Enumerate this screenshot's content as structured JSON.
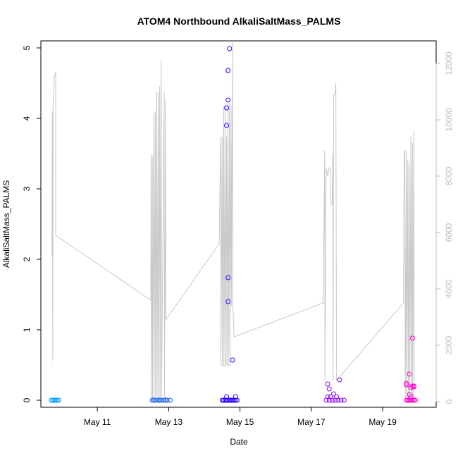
{
  "chart_data": {
    "type": "scatter",
    "title": "ATOM4 Northbound AlkaliSaltMass_PALMS",
    "xlabel": "Date",
    "ylabel": "AlkaliSaltMass_PALMS",
    "ylim": [
      -0.1,
      5.1
    ],
    "y2lim": [
      -200,
      12800
    ],
    "xlim": [
      "2016-05-09T10:00",
      "2016-05-20T12:00"
    ],
    "x_ticks": [
      "May 11",
      "May 13",
      "May 15",
      "May 17",
      "May 19"
    ],
    "y_ticks": [
      "0",
      "1",
      "2",
      "3",
      "4",
      "5"
    ],
    "y2_ticks": [
      "0",
      "2000",
      "4000",
      "6000",
      "8000",
      "10000",
      "12000"
    ],
    "grid": false,
    "series": [
      {
        "color": "#009cff",
        "points": [
          [
            "2016-05-09T17:00",
            0
          ],
          [
            "2016-05-09T18:00",
            0
          ],
          [
            "2016-05-09T19:00",
            0
          ],
          [
            "2016-05-09T20:00",
            0
          ],
          [
            "2016-05-09T21:00",
            0
          ],
          [
            "2016-05-09T22:00",
            0
          ]
        ]
      },
      {
        "color": "#1966ff",
        "points": [
          [
            "2016-05-12T13:00",
            0
          ],
          [
            "2016-05-12T15:00",
            0
          ],
          [
            "2016-05-12T17:00",
            0
          ],
          [
            "2016-05-12T19:00",
            0
          ],
          [
            "2016-05-12T21:00",
            0
          ],
          [
            "2016-05-12T23:00",
            0
          ],
          [
            "2016-05-13T01:00",
            0
          ],
          [
            "2016-05-12T14:00",
            0
          ],
          [
            "2016-05-12T18:00",
            0
          ],
          [
            "2016-05-12T22:00",
            0
          ]
        ]
      },
      {
        "color": "#2400ff",
        "points": [
          [
            "2016-05-14T12:00",
            0
          ],
          [
            "2016-05-14T13:00",
            0
          ],
          [
            "2016-05-14T14:00",
            0
          ],
          [
            "2016-05-14T15:00",
            0
          ],
          [
            "2016-05-14T16:00",
            0
          ],
          [
            "2016-05-14T17:00",
            0
          ],
          [
            "2016-05-14T18:00",
            0
          ],
          [
            "2016-05-14T19:00",
            0
          ],
          [
            "2016-05-14T20:00",
            0
          ],
          [
            "2016-05-14T21:00",
            0
          ],
          [
            "2016-05-14T22:00",
            0
          ],
          [
            "2016-05-14T15:00",
            0.05
          ],
          [
            "2016-05-14T21:00",
            0.05
          ],
          [
            "2016-05-14T19:00",
            0.57
          ],
          [
            "2016-05-14T16:00",
            1.4
          ],
          [
            "2016-05-14T16:00",
            1.74
          ],
          [
            "2016-05-14T15:00",
            3.9
          ],
          [
            "2016-05-14T15:00",
            4.15
          ],
          [
            "2016-05-14T16:00",
            4.26
          ],
          [
            "2016-05-14T16:00",
            4.68
          ],
          [
            "2016-05-14T17:00",
            4.99
          ]
        ]
      },
      {
        "color": "#8a00ff",
        "points": [
          [
            "2016-05-17T10:00",
            0
          ],
          [
            "2016-05-17T12:00",
            0
          ],
          [
            "2016-05-17T14:00",
            0
          ],
          [
            "2016-05-17T16:00",
            0
          ],
          [
            "2016-05-17T18:00",
            0
          ],
          [
            "2016-05-17T20:00",
            0
          ],
          [
            "2016-05-17T22:00",
            0
          ],
          [
            "2016-05-17T11:00",
            0.05
          ],
          [
            "2016-05-17T13:00",
            0.05
          ],
          [
            "2016-05-17T17:00",
            0.05
          ],
          [
            "2016-05-17T15:00",
            0.09
          ],
          [
            "2016-05-17T12:00",
            0.16
          ],
          [
            "2016-05-17T11:00",
            0.23
          ],
          [
            "2016-05-17T19:00",
            0.29
          ]
        ]
      },
      {
        "color": "#ff00cc",
        "points": [
          [
            "2016-05-19T16:00",
            0
          ],
          [
            "2016-05-19T17:00",
            0
          ],
          [
            "2016-05-19T18:00",
            0
          ],
          [
            "2016-05-19T19:00",
            0
          ],
          [
            "2016-05-19T20:00",
            0
          ],
          [
            "2016-05-19T21:00",
            0
          ],
          [
            "2016-05-19T22:00",
            0
          ],
          [
            "2016-05-19T16:00",
            0.22
          ],
          [
            "2016-05-19T16:00",
            0.24
          ],
          [
            "2016-05-19T18:00",
            0.08
          ],
          [
            "2016-05-19T19:00",
            0.05
          ],
          [
            "2016-05-19T19:00",
            0.18
          ],
          [
            "2016-05-19T20:00",
            0.2
          ],
          [
            "2016-05-19T21:00",
            0.19
          ],
          [
            "2016-05-19T21:00",
            0.2
          ],
          [
            "2016-05-19T18:00",
            0.37
          ],
          [
            "2016-05-19T20:00",
            0.88
          ]
        ]
      }
    ],
    "line_series": {
      "color": "#c8c8c8",
      "axis": "right",
      "points": [
        [
          "2016-05-09T17:30",
          5150
        ],
        [
          "2016-05-09T17:45",
          10300
        ],
        [
          "2016-05-09T18:00",
          1450
        ],
        [
          "2016-05-09T18:15",
          10700
        ],
        [
          "2016-05-09T18:30",
          10800
        ],
        [
          "2016-05-09T19:00",
          11500
        ],
        [
          "2016-05-09T20:00",
          11700
        ],
        [
          "2016-05-09T20:00",
          5900
        ],
        [
          "2016-05-12T12:00",
          3600
        ],
        [
          "2016-05-12T12:10",
          8800
        ],
        [
          "2016-05-12T12:20",
          0
        ],
        [
          "2016-05-12T13:00",
          8700
        ],
        [
          "2016-05-12T13:10",
          0
        ],
        [
          "2016-05-12T14:00",
          10250
        ],
        [
          "2016-05-12T14:10",
          0
        ],
        [
          "2016-05-12T15:00",
          10300
        ],
        [
          "2016-05-12T15:10",
          0
        ],
        [
          "2016-05-12T16:00",
          11000
        ],
        [
          "2016-05-12T16:10",
          0
        ],
        [
          "2016-05-12T17:00",
          11000
        ],
        [
          "2016-05-12T17:10",
          0
        ],
        [
          "2016-05-12T18:00",
          11200
        ],
        [
          "2016-05-12T18:10",
          0
        ],
        [
          "2016-05-12T19:00",
          12100
        ],
        [
          "2016-05-12T19:10",
          0
        ],
        [
          "2016-05-12T21:00",
          11000
        ],
        [
          "2016-05-12T21:10",
          0
        ],
        [
          "2016-05-12T22:00",
          10700
        ],
        [
          "2016-05-12T22:00",
          2900
        ],
        [
          "2016-05-14T10:00",
          5600
        ],
        [
          "2016-05-14T11:00",
          9400
        ],
        [
          "2016-05-14T11:10",
          1250
        ],
        [
          "2016-05-14T12:00",
          9400
        ],
        [
          "2016-05-14T12:10",
          1250
        ],
        [
          "2016-05-14T13:00",
          10500
        ],
        [
          "2016-05-14T13:10",
          1250
        ],
        [
          "2016-05-14T14:00",
          10600
        ],
        [
          "2016-05-14T14:10",
          1250
        ],
        [
          "2016-05-14T15:00",
          9400
        ],
        [
          "2016-05-14T15:10",
          1250
        ],
        [
          "2016-05-14T16:00",
          10550
        ],
        [
          "2016-05-14T16:10",
          1250
        ],
        [
          "2016-05-14T17:00",
          10600
        ],
        [
          "2016-05-14T17:10",
          1250
        ],
        [
          "2016-05-14T18:00",
          10500
        ],
        [
          "2016-05-14T18:10",
          3400
        ],
        [
          "2016-05-14T19:00",
          12800
        ],
        [
          "2016-05-14T19:10",
          3400
        ],
        [
          "2016-05-14T20:00",
          2300
        ],
        [
          "2016-05-17T08:00",
          3500
        ],
        [
          "2016-05-17T09:00",
          8900
        ],
        [
          "2016-05-17T09:10",
          700
        ],
        [
          "2016-05-17T10:00",
          8300
        ],
        [
          "2016-05-17T11:00",
          8000
        ],
        [
          "2016-05-17T12:00",
          8300
        ],
        [
          "2016-05-17T13:00",
          8200
        ],
        [
          "2016-05-17T13:10",
          7000
        ],
        [
          "2016-05-17T14:00",
          7000
        ],
        [
          "2016-05-17T14:30",
          8800
        ],
        [
          "2016-05-17T14:40",
          750
        ],
        [
          "2016-05-17T15:00",
          10900
        ],
        [
          "2016-05-17T16:00",
          10900
        ],
        [
          "2016-05-17T16:30",
          11300
        ],
        [
          "2016-05-17T17:00",
          750
        ],
        [
          "2016-05-19T14:00",
          3500
        ],
        [
          "2016-05-19T14:30",
          8900
        ],
        [
          "2016-05-19T15:00",
          8900
        ],
        [
          "2016-05-19T15:10",
          0
        ],
        [
          "2016-05-19T16:00",
          8900
        ],
        [
          "2016-05-19T16:10",
          0
        ],
        [
          "2016-05-19T17:00",
          8600
        ],
        [
          "2016-05-19T17:10",
          0
        ],
        [
          "2016-05-19T18:00",
          8400
        ],
        [
          "2016-05-19T18:10",
          0
        ],
        [
          "2016-05-19T19:00",
          9400
        ],
        [
          "2016-05-19T19:10",
          0
        ],
        [
          "2016-05-19T20:00",
          9200
        ],
        [
          "2016-05-19T20:10",
          0
        ],
        [
          "2016-05-19T21:00",
          9600
        ],
        [
          "2016-05-19T21:10",
          0
        ]
      ]
    }
  }
}
